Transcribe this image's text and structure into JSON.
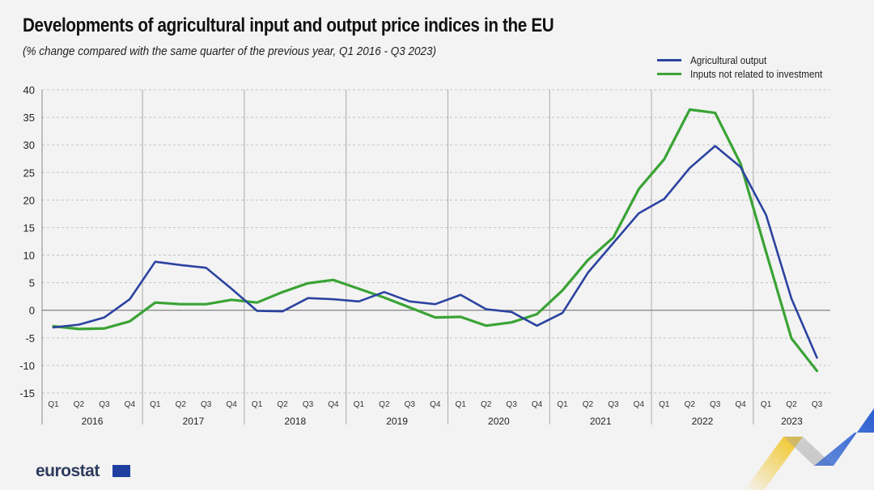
{
  "title": "Developments of agricultural input and output price indices in the EU",
  "subtitle": "(% change compared with the same quarter of the previous year,  Q1 2016 - Q3 2023)",
  "logo_text": "eurostat",
  "colors": {
    "agricultural_output": "#2b43a0",
    "inputs_not_related": "#3aa335",
    "grid": "#c4c4c4",
    "zero_line": "#666666",
    "eu_flag": "#1f3fa0",
    "accent_yellow": "#f2c318",
    "accent_blue": "#2b5fd0"
  },
  "chart_data": {
    "type": "line",
    "x": [
      "Q1",
      "Q2",
      "Q3",
      "Q4",
      "Q1",
      "Q2",
      "Q3",
      "Q4",
      "Q1",
      "Q2",
      "Q3",
      "Q4",
      "Q1",
      "Q2",
      "Q3",
      "Q4",
      "Q1",
      "Q2",
      "Q3",
      "Q4",
      "Q1",
      "Q2",
      "Q3",
      "Q4",
      "Q1",
      "Q2",
      "Q3",
      "Q4",
      "Q1",
      "Q2",
      "Q3"
    ],
    "years": [
      "2016",
      "2017",
      "2018",
      "2019",
      "2020",
      "2021",
      "2022",
      "2023"
    ],
    "series": [
      {
        "name": "Agricultural output",
        "color": "#2b43a0",
        "values": [
          -3.1,
          -2.6,
          -1.3,
          2.0,
          8.8,
          8.2,
          7.7,
          3.9,
          -0.1,
          -0.2,
          2.2,
          2.0,
          1.6,
          3.3,
          1.6,
          1.1,
          2.8,
          0.2,
          -0.3,
          -2.8,
          -0.5,
          6.8,
          12.2,
          17.6,
          20.2,
          25.8,
          29.8,
          26.0,
          17.3,
          2.1,
          -8.6
        ]
      },
      {
        "name": "Inputs not related to investment",
        "color": "#3aa335",
        "values": [
          -2.9,
          -3.4,
          -3.3,
          -2.0,
          1.4,
          1.1,
          1.1,
          1.9,
          1.4,
          3.3,
          4.9,
          5.5,
          3.9,
          2.3,
          0.5,
          -1.3,
          -1.2,
          -2.8,
          -2.2,
          -0.7,
          3.6,
          9.1,
          13.2,
          22.0,
          27.4,
          36.4,
          35.8,
          26.6,
          10.6,
          -5.1,
          -11.0
        ]
      }
    ],
    "ylim": [
      -15,
      40
    ],
    "yticks": [
      -15,
      -10,
      -5,
      0,
      5,
      10,
      15,
      20,
      25,
      30,
      35,
      40
    ],
    "grid": true,
    "legend": "top-right"
  }
}
